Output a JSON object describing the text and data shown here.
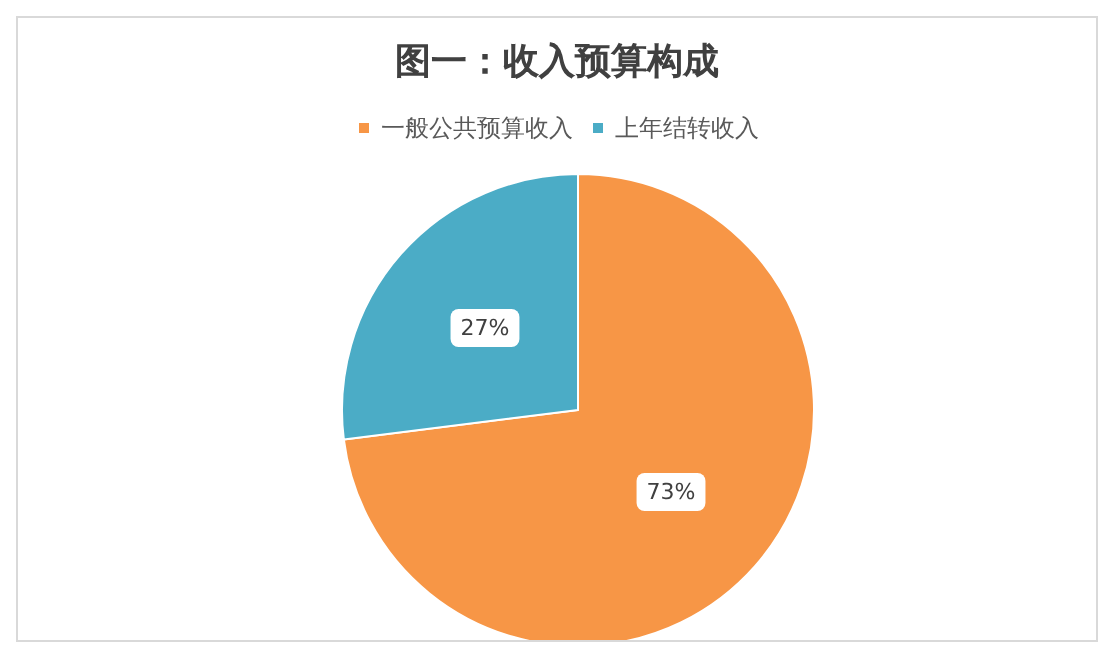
{
  "chart_data": {
    "type": "pie",
    "title": "图一：收入预算构成",
    "categories": [
      "一般公共预算收入",
      "上年结转收入"
    ],
    "values": [
      73,
      27
    ],
    "colors": [
      "#f79646",
      "#4bacc6"
    ],
    "value_labels": [
      "73%",
      "27%"
    ],
    "legend": "top"
  }
}
